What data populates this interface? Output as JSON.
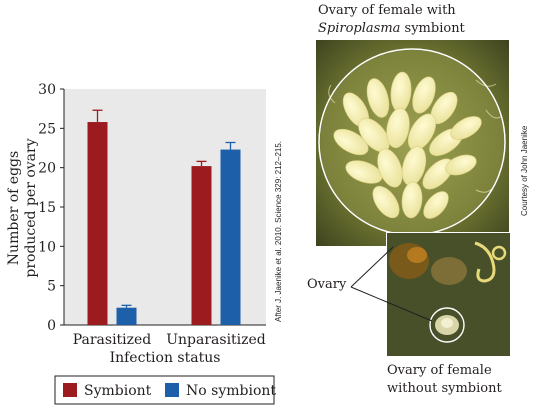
{
  "chart_data": {
    "type": "bar",
    "categories": [
      "Parasitized",
      "Unparasitized"
    ],
    "series": [
      {
        "name": "Symbiont",
        "values": [
          25.8,
          20.2
        ],
        "errors": [
          1.5,
          0.6
        ],
        "color": "#9b1b1f"
      },
      {
        "name": "No symbiont",
        "values": [
          2.2,
          22.3
        ],
        "errors": [
          0.3,
          0.9
        ],
        "color": "#1d5fa8"
      }
    ],
    "xlabel": "Infection status",
    "ylabel_line1": "Number of eggs",
    "ylabel_line2": "produced per ovary",
    "ylim": [
      0,
      30
    ],
    "yticks": [
      0,
      5,
      10,
      15,
      20,
      25,
      30
    ],
    "grid": false,
    "legend_position": "bottom",
    "plot_background": "#e9e9e9"
  },
  "credit_left": "After J. Jaenike et al. 2010. Science 329: 212–215.",
  "credit_right": "Courtesy of John Jaenike",
  "photo_top_caption_line1": "Ovary of female with",
  "photo_top_caption_genus": "Spiroplasma",
  "photo_top_caption_rest": " symbiont",
  "ovary_label": "Ovary",
  "photo_bottom_caption_line1": "Ovary of female",
  "photo_bottom_caption_line2": "without symbiont"
}
